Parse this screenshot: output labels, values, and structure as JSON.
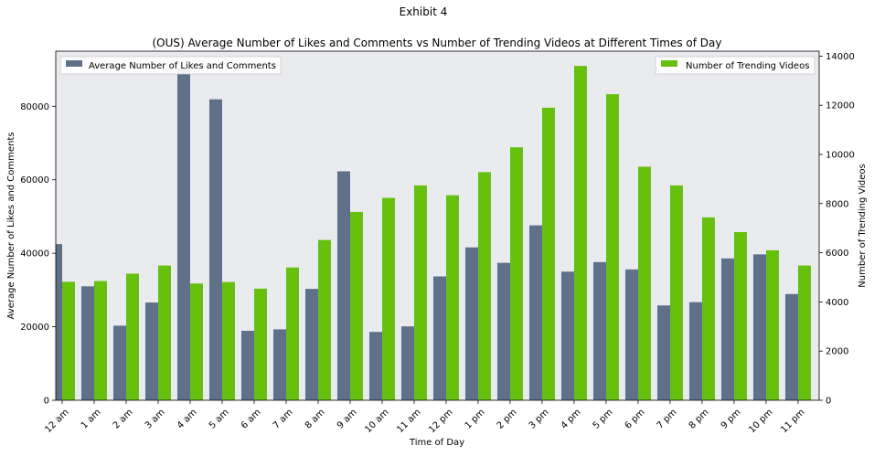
{
  "figure": {
    "suptitle": "Exhibit 4"
  },
  "colors": {
    "plot_background": "#EAEBEE",
    "likes_series": "#5E7188",
    "trending_series": "#66C010"
  },
  "chart_data": {
    "type": "bar",
    "title": "(OUS) Average Number of Likes and Comments vs Number of Trending Videos at Different Times of Day",
    "xlabel": "Time of Day",
    "ylabel_left": "Average Number of Likes and Comments",
    "ylabel_right": "Number of Trending Videos",
    "grid": false,
    "categories": [
      "12 am",
      "1 am",
      "2 am",
      "3 am",
      "4 am",
      "5 am",
      "6 am",
      "7 am",
      "8 am",
      "9 am",
      "10 am",
      "11 am",
      "12 pm",
      "1 pm",
      "2 pm",
      "3 pm",
      "4 pm",
      "5 pm",
      "6 pm",
      "7 pm",
      "8 pm",
      "9 pm",
      "10 pm",
      "11 pm"
    ],
    "y_left": {
      "lim": [
        0,
        95000
      ],
      "ticks": [
        0,
        20000,
        40000,
        60000,
        80000
      ]
    },
    "y_right": {
      "lim": [
        0,
        14200
      ],
      "ticks": [
        0,
        2000,
        4000,
        6000,
        8000,
        10000,
        12000,
        14000
      ]
    },
    "series": [
      {
        "name": "Average Number of Likes and Comments",
        "axis": "left",
        "legend_position": "top-left",
        "values": [
          42500,
          31000,
          20300,
          26600,
          90300,
          81900,
          18900,
          19300,
          30300,
          62300,
          18600,
          20100,
          33700,
          41600,
          37400,
          47600,
          35000,
          37600,
          35600,
          25800,
          26700,
          38600,
          39700,
          28900
        ]
      },
      {
        "name": "Number of Trending Videos",
        "axis": "right",
        "legend_position": "top-right",
        "values": [
          4820,
          4850,
          5150,
          5480,
          4750,
          4810,
          4540,
          5400,
          6520,
          7660,
          8230,
          8740,
          8340,
          9280,
          10290,
          11900,
          13600,
          12450,
          9500,
          8740,
          7440,
          6840,
          6100,
          5480
        ]
      }
    ]
  }
}
